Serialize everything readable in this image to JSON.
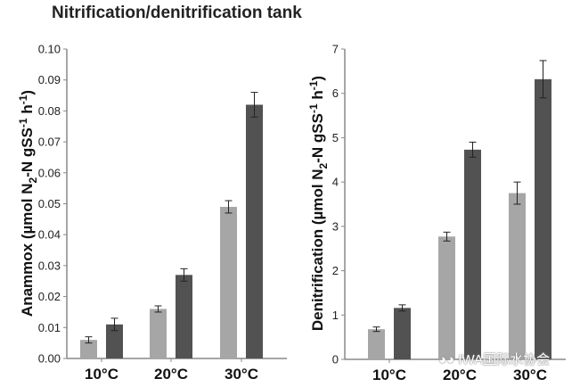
{
  "title": "Nitrification/denitrification tank",
  "watermark": "IWA国际水协会",
  "colors": {
    "light": "#a6a6a6",
    "dark": "#525252",
    "axis": "#888888"
  },
  "chart_data": [
    {
      "type": "bar",
      "ylabel_main": "Anammox (µmol N",
      "ylabel_sub": "2",
      "ylabel_mid": "-N gSS",
      "ylabel_sup": "-1",
      "ylabel_end": " h",
      "ylabel_sup2": "-1",
      "ylabel_close": ")",
      "categories": [
        "10°C",
        "20°C",
        "30°C"
      ],
      "ylim": [
        0,
        0.1
      ],
      "yticks": [
        "0.00",
        "0.01",
        "0.02",
        "0.03",
        "0.04",
        "0.05",
        "0.06",
        "0.07",
        "0.08",
        "0.09",
        "0.10"
      ],
      "series": [
        {
          "values": [
            0.006,
            0.016,
            0.049
          ],
          "errors": [
            0.001,
            0.001,
            0.002
          ],
          "color": "#a6a6a6"
        },
        {
          "values": [
            0.011,
            0.027,
            0.082
          ],
          "errors": [
            0.002,
            0.002,
            0.004
          ],
          "color": "#525252"
        }
      ]
    },
    {
      "type": "bar",
      "ylabel_main": "Denitrification (µmol N",
      "ylabel_sub": "2",
      "ylabel_mid": "-N gSS",
      "ylabel_sup": "-1",
      "ylabel_end": " h",
      "ylabel_sup2": "-1",
      "ylabel_close": ")",
      "categories": [
        "10°C",
        "20°C",
        "30°C"
      ],
      "ylim": [
        0,
        7
      ],
      "yticks": [
        "0",
        "1",
        "2",
        "3",
        "4",
        "5",
        "6",
        "7"
      ],
      "series": [
        {
          "values": [
            0.68,
            2.77,
            3.75
          ],
          "errors": [
            0.05,
            0.1,
            0.25
          ],
          "color": "#a6a6a6"
        },
        {
          "values": [
            1.16,
            4.73,
            6.32
          ],
          "errors": [
            0.07,
            0.17,
            0.42
          ],
          "color": "#525252"
        }
      ]
    }
  ]
}
